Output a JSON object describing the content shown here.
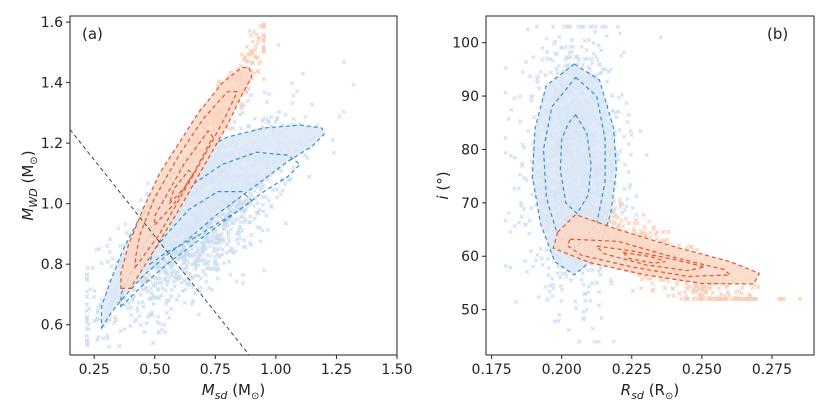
{
  "chart_data": [
    {
      "type": "scatter",
      "panel_label": "(a)",
      "xlabel": {
        "main": "M",
        "sub": "sd",
        "unit_open": " (M",
        "unit_sub": "⊙",
        "unit_close": ")"
      },
      "ylabel": {
        "main": "M",
        "sub": "WD",
        "unit_open": " (M",
        "unit_sub": "⊙",
        "unit_close": ")"
      },
      "xlim": [
        0.15,
        1.5
      ],
      "ylim": [
        0.5,
        1.62
      ],
      "xticks": [
        0.25,
        0.5,
        0.75,
        1.0,
        1.25,
        1.5
      ],
      "xtick_labels": [
        "0.25",
        "0.50",
        "0.75",
        "1.00",
        "1.25",
        "1.50"
      ],
      "yticks": [
        0.6,
        0.8,
        1.0,
        1.2,
        1.4,
        1.6
      ],
      "ytick_labels": [
        "0.6",
        "0.8",
        "1.0",
        "1.2",
        "1.4",
        "1.6"
      ],
      "colors": {
        "blue_fill": "#dbe8f6",
        "blue_line": "#3d8fc9",
        "red_fill": "#fcd8c6",
        "red_line": "#e4532a",
        "points_blue": "#c9dcf1",
        "points_red": "#f9cdb6"
      },
      "series": [
        {
          "name": "blue-population",
          "contours": [
            [
              [
                0.28,
                0.59
              ],
              [
                0.32,
                0.64
              ],
              [
                0.36,
                0.68
              ],
              [
                0.45,
                0.76
              ],
              [
                0.55,
                0.83
              ],
              [
                0.65,
                0.89
              ],
              [
                0.75,
                0.96
              ],
              [
                0.85,
                1.02
              ],
              [
                0.95,
                1.08
              ],
              [
                1.05,
                1.14
              ],
              [
                1.15,
                1.19
              ],
              [
                1.2,
                1.23
              ],
              [
                1.19,
                1.25
              ],
              [
                1.1,
                1.26
              ],
              [
                0.95,
                1.25
              ],
              [
                0.8,
                1.22
              ],
              [
                0.68,
                1.17
              ],
              [
                0.58,
                1.1
              ],
              [
                0.5,
                1.02
              ],
              [
                0.43,
                0.94
              ],
              [
                0.37,
                0.85
              ],
              [
                0.32,
                0.75
              ],
              [
                0.28,
                0.66
              ],
              [
                0.28,
                0.59
              ]
            ],
            [
              [
                0.36,
                0.66
              ],
              [
                0.45,
                0.73
              ],
              [
                0.55,
                0.8
              ],
              [
                0.65,
                0.86
              ],
              [
                0.75,
                0.92
              ],
              [
                0.85,
                0.98
              ],
              [
                0.95,
                1.04
              ],
              [
                1.05,
                1.09
              ],
              [
                1.1,
                1.13
              ],
              [
                1.05,
                1.16
              ],
              [
                0.92,
                1.17
              ],
              [
                0.78,
                1.13
              ],
              [
                0.65,
                1.06
              ],
              [
                0.55,
                0.97
              ],
              [
                0.46,
                0.87
              ],
              [
                0.4,
                0.77
              ],
              [
                0.36,
                0.7
              ],
              [
                0.36,
                0.66
              ]
            ],
            [
              [
                0.48,
                0.8
              ],
              [
                0.55,
                0.84
              ],
              [
                0.65,
                0.88
              ],
              [
                0.75,
                0.93
              ],
              [
                0.85,
                0.98
              ],
              [
                0.9,
                1.01
              ],
              [
                0.86,
                1.04
              ],
              [
                0.76,
                1.04
              ],
              [
                0.64,
                0.98
              ],
              [
                0.55,
                0.9
              ],
              [
                0.49,
                0.84
              ],
              [
                0.48,
                0.8
              ]
            ]
          ],
          "points": {
            "count": 1400,
            "x_mean": 0.68,
            "x_sd": 0.2,
            "x_min": 0.22,
            "x_max": 1.46,
            "slope": 0.64,
            "intercept": 0.5,
            "scatter_sd": 0.11
          }
        },
        {
          "name": "red-population",
          "contours": [
            [
              [
                0.36,
                0.72
              ],
              [
                0.4,
                0.72
              ],
              [
                0.5,
                0.85
              ],
              [
                0.6,
                0.98
              ],
              [
                0.7,
                1.12
              ],
              [
                0.8,
                1.26
              ],
              [
                0.86,
                1.36
              ],
              [
                0.9,
                1.42
              ],
              [
                0.89,
                1.45
              ],
              [
                0.86,
                1.45
              ],
              [
                0.78,
                1.4
              ],
              [
                0.68,
                1.3
              ],
              [
                0.6,
                1.2
              ],
              [
                0.52,
                1.1
              ],
              [
                0.45,
                0.98
              ],
              [
                0.39,
                0.86
              ],
              [
                0.36,
                0.77
              ],
              [
                0.36,
                0.72
              ]
            ],
            [
              [
                0.42,
                0.79
              ],
              [
                0.52,
                0.9
              ],
              [
                0.62,
                1.04
              ],
              [
                0.72,
                1.18
              ],
              [
                0.8,
                1.3
              ],
              [
                0.84,
                1.37
              ],
              [
                0.8,
                1.37
              ],
              [
                0.7,
                1.28
              ],
              [
                0.6,
                1.16
              ],
              [
                0.5,
                1.02
              ],
              [
                0.44,
                0.9
              ],
              [
                0.42,
                0.82
              ],
              [
                0.42,
                0.79
              ]
            ],
            [
              [
                0.5,
                0.93
              ],
              [
                0.58,
                1.0
              ],
              [
                0.66,
                1.1
              ],
              [
                0.74,
                1.22
              ],
              [
                0.72,
                1.24
              ],
              [
                0.62,
                1.13
              ],
              [
                0.55,
                1.03
              ],
              [
                0.5,
                0.96
              ],
              [
                0.5,
                0.93
              ]
            ],
            [
              [
                0.56,
                1.0
              ],
              [
                0.62,
                1.05
              ],
              [
                0.66,
                1.1
              ],
              [
                0.64,
                1.11
              ],
              [
                0.58,
                1.05
              ],
              [
                0.56,
                1.0
              ]
            ]
          ],
          "points": {
            "count": 650,
            "x_mean": 0.68,
            "x_sd": 0.14,
            "x_min": 0.34,
            "x_max": 0.95,
            "slope": 1.38,
            "intercept": 0.23,
            "scatter_sd": 0.045
          }
        }
      ],
      "reference_line": {
        "x": [
          0.15,
          0.89
        ],
        "y": [
          1.245,
          0.5
        ]
      }
    },
    {
      "type": "scatter",
      "panel_label": "(b)",
      "xlabel": {
        "main": "R",
        "sub": "sd",
        "unit_open": " (R",
        "unit_sub": "⊙",
        "unit_close": ")"
      },
      "ylabel": {
        "main": "i",
        "sub": "",
        "unit_open": " (°)",
        "unit_sub": "",
        "unit_close": ""
      },
      "xlim": [
        0.173,
        0.29
      ],
      "ylim": [
        41.5,
        105
      ],
      "xticks": [
        0.175,
        0.2,
        0.225,
        0.25,
        0.275
      ],
      "xtick_labels": [
        "0.175",
        "0.200",
        "0.225",
        "0.250",
        "0.275"
      ],
      "yticks": [
        50,
        60,
        70,
        80,
        90,
        100
      ],
      "ytick_labels": [
        "50",
        "60",
        "70",
        "80",
        "90",
        "100"
      ],
      "colors": {
        "blue_fill": "#dbe8f6",
        "blue_line": "#3d8fc9",
        "red_fill": "#fcd8c6",
        "red_line": "#e4532a",
        "points_blue": "#c9dcf1",
        "points_red": "#f9cdb6"
      },
      "series": [
        {
          "name": "blue-population",
          "contours": [
            [
              [
                0.2045,
                96.0
              ],
              [
                0.2135,
                93.0
              ],
              [
                0.2185,
                84.0
              ],
              [
                0.2195,
                76.0
              ],
              [
                0.2175,
                68.0
              ],
              [
                0.2125,
                60.0
              ],
              [
                0.2045,
                56.5
              ],
              [
                0.1975,
                59.0
              ],
              [
                0.1925,
                66.0
              ],
              [
                0.1895,
                75.0
              ],
              [
                0.1905,
                84.0
              ],
              [
                0.1945,
                92.0
              ],
              [
                0.2045,
                96.0
              ]
            ],
            [
              [
                0.205,
                93.5
              ],
              [
                0.2125,
                90.0
              ],
              [
                0.2155,
                82.0
              ],
              [
                0.2155,
                74.0
              ],
              [
                0.2125,
                66.0
              ],
              [
                0.205,
                61.5
              ],
              [
                0.1985,
                64.0
              ],
              [
                0.1945,
                71.0
              ],
              [
                0.1935,
                80.0
              ],
              [
                0.1965,
                88.0
              ],
              [
                0.205,
                93.5
              ]
            ],
            [
              [
                0.205,
                86.5
              ],
              [
                0.209,
                83.0
              ],
              [
                0.2105,
                77.0
              ],
              [
                0.2095,
                71.5
              ],
              [
                0.2055,
                68.0
              ],
              [
                0.2015,
                70.0
              ],
              [
                0.1995,
                76.0
              ],
              [
                0.2,
                82.0
              ],
              [
                0.2025,
                85.0
              ],
              [
                0.205,
                86.5
              ]
            ]
          ],
          "points": {
            "count": 1300,
            "x_mean": 0.2045,
            "x_sd": 0.0085,
            "x_min": 0.18,
            "x_max": 0.236,
            "y_mean": 77.0,
            "y_sd": 11.0,
            "y_min": 44.0,
            "y_max": 103.0
          }
        },
        {
          "name": "red-population",
          "contours": [
            [
              [
                0.1985,
                64.5
              ],
              [
                0.205,
                67.8
              ],
              [
                0.22,
                65.0
              ],
              [
                0.24,
                61.8
              ],
              [
                0.26,
                59.0
              ],
              [
                0.2705,
                56.8
              ],
              [
                0.2685,
                54.8
              ],
              [
                0.25,
                54.9
              ],
              [
                0.23,
                56.5
              ],
              [
                0.21,
                58.8
              ],
              [
                0.197,
                61.5
              ],
              [
                0.1985,
                64.5
              ]
            ],
            [
              [
                0.203,
                63.2
              ],
              [
                0.22,
                62.8
              ],
              [
                0.24,
                59.8
              ],
              [
                0.258,
                57.5
              ],
              [
                0.26,
                56.5
              ],
              [
                0.245,
                56.2
              ],
              [
                0.225,
                58.0
              ],
              [
                0.207,
                60.2
              ],
              [
                0.202,
                62.0
              ],
              [
                0.203,
                63.2
              ]
            ],
            [
              [
                0.2125,
                61.9
              ],
              [
                0.225,
                61.0
              ],
              [
                0.24,
                59.4
              ],
              [
                0.251,
                58.0
              ],
              [
                0.245,
                57.3
              ],
              [
                0.23,
                58.4
              ],
              [
                0.215,
                60.5
              ],
              [
                0.2125,
                61.9
              ]
            ],
            [
              [
                0.222,
                60.7
              ],
              [
                0.232,
                59.9
              ],
              [
                0.237,
                59.0
              ],
              [
                0.233,
                58.7
              ],
              [
                0.224,
                59.6
              ],
              [
                0.222,
                60.7
              ]
            ]
          ],
          "points": {
            "count": 700,
            "x_mean": 0.232,
            "x_sd": 0.018,
            "x_min": 0.195,
            "x_max": 0.285,
            "y_center": 60.0,
            "y_slope": -260.0,
            "y_sd": 2.6,
            "y_min": 52.0,
            "y_max": 74.5
          }
        }
      ]
    }
  ]
}
